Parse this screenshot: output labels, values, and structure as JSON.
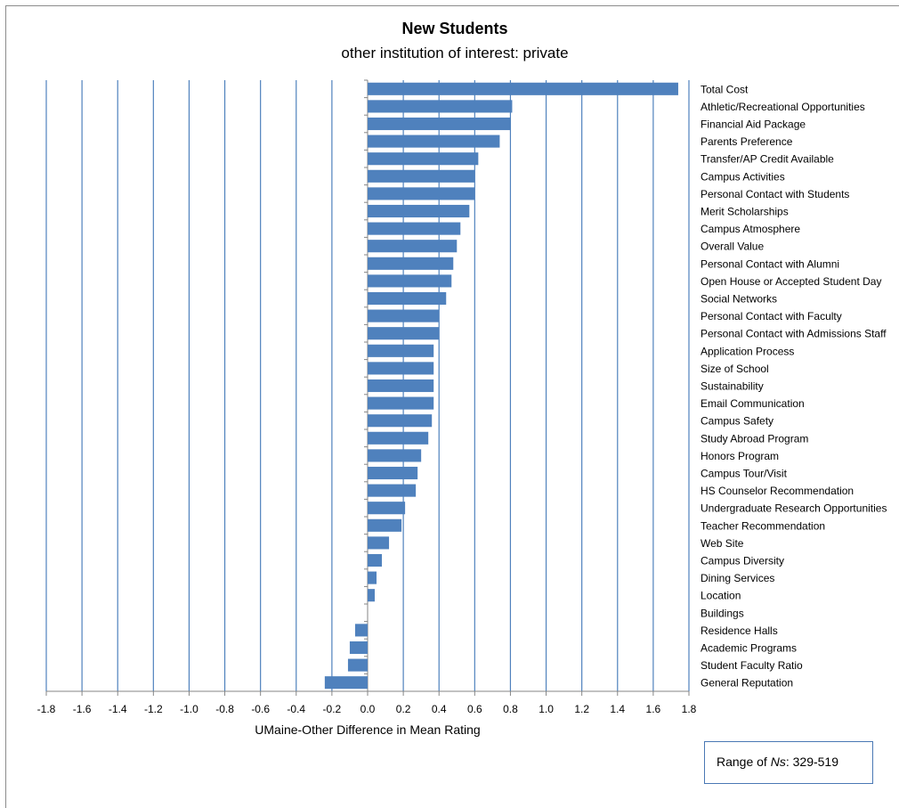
{
  "colors": {
    "bar": "#4f81bd",
    "grid": "#4f81bd",
    "axis": "#868686"
  },
  "chart_data": {
    "type": "bar",
    "orientation": "horizontal",
    "title": "New Students",
    "subtitle": "other institution of interest: private",
    "xlabel": "UMaine-Other Difference in Mean Rating",
    "xlim": [
      -1.8,
      1.8
    ],
    "xticks": [
      "-1.8",
      "-1.6",
      "-1.4",
      "-1.2",
      "-1.0",
      "-0.8",
      "-0.6",
      "-0.4",
      "-0.2",
      "0.0",
      "0.2",
      "0.4",
      "0.6",
      "0.8",
      "1.0",
      "1.2",
      "1.4",
      "1.6",
      "1.8"
    ],
    "grid": "vertical",
    "categories": [
      "Total Cost",
      "Athletic/Recreational Opportunities",
      "Financial Aid Package",
      "Parents Preference",
      "Transfer/AP Credit Available",
      "Campus Activities",
      "Personal Contact with Students",
      "Merit Scholarships",
      "Campus Atmosphere",
      "Overall Value",
      "Personal Contact with Alumni",
      "Open House or Accepted Student Day",
      "Social Networks",
      "Personal Contact with Faculty",
      "Personal Contact with Admissions Staff",
      "Application Process",
      "Size of School",
      "Sustainability",
      "Email Communication",
      "Campus Safety",
      "Study Abroad Program",
      "Honors Program",
      "Campus Tour/Visit",
      "HS Counselor Recommendation",
      "Undergraduate Research Opportunities",
      "Teacher Recommendation",
      "Web Site",
      "Campus Diversity",
      "Dining Services",
      "Location",
      "Buildings",
      "Residence Halls",
      "Academic Programs",
      "Student Faculty Ratio",
      "General Reputation"
    ],
    "values": [
      1.74,
      0.81,
      0.8,
      0.74,
      0.62,
      0.6,
      0.6,
      0.57,
      0.52,
      0.5,
      0.48,
      0.47,
      0.44,
      0.4,
      0.4,
      0.37,
      0.37,
      0.37,
      0.37,
      0.36,
      0.34,
      0.3,
      0.28,
      0.27,
      0.21,
      0.19,
      0.12,
      0.08,
      0.05,
      0.04,
      0.0,
      -0.07,
      -0.1,
      -0.11,
      -0.24
    ]
  },
  "note": {
    "prefix": "Range of ",
    "italic": "Ns",
    "suffix": ":  329-519"
  }
}
